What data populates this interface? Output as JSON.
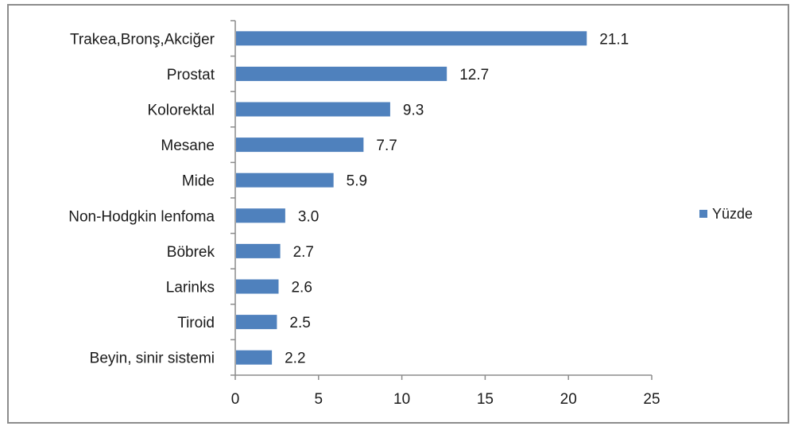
{
  "chart_data": {
    "type": "bar",
    "orientation": "horizontal",
    "title": "",
    "xlabel": "",
    "ylabel": "",
    "categories": [
      "Trakea,Bronş,Akciğer",
      "Prostat",
      "Kolorektal",
      "Mesane",
      "Mide",
      "Non-Hodgkin lenfoma",
      "Böbrek",
      "Larinks",
      "Tiroid",
      "Beyin, sinir sistemi"
    ],
    "series": [
      {
        "name": "Yüzde",
        "values": [
          21.1,
          12.7,
          9.3,
          7.7,
          5.9,
          3.0,
          2.7,
          2.6,
          2.5,
          2.2
        ],
        "labels": [
          "21.1",
          "12.7",
          "9.3",
          "7.7",
          "5.9",
          "3.0",
          "2.7",
          "2.6",
          "2.5",
          "2.2"
        ],
        "color": "#4f81bd"
      }
    ],
    "xlim": [
      0,
      25
    ],
    "xticks": [
      0,
      5,
      10,
      15,
      20,
      25
    ],
    "grid": false,
    "legend": {
      "position": "right",
      "entries": [
        "Yüzde"
      ]
    }
  }
}
